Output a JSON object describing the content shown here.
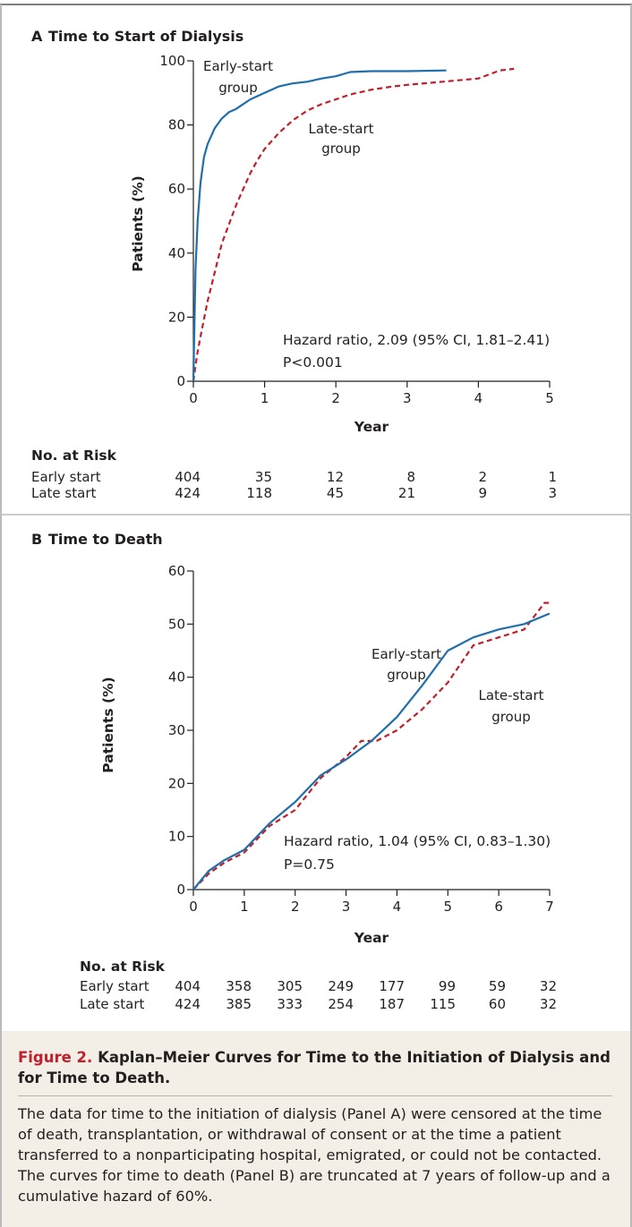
{
  "chart_data": [
    {
      "panel_letter": "A",
      "title": "Time to Start of Dialysis",
      "type": "line",
      "xlabel": "Year",
      "ylabel": "Patients (%)",
      "xlim": [
        0,
        5
      ],
      "ylim": [
        0,
        100
      ],
      "xticks": [
        0,
        1,
        2,
        3,
        4,
        5
      ],
      "yticks": [
        0,
        20,
        40,
        60,
        80,
        100
      ],
      "grid": false,
      "series": [
        {
          "name": "Early-start group",
          "color": "#1f6fad",
          "style": "solid",
          "x": [
            0,
            0.03,
            0.06,
            0.1,
            0.15,
            0.2,
            0.3,
            0.4,
            0.5,
            0.6,
            0.7,
            0.8,
            0.9,
            1.0,
            1.2,
            1.4,
            1.6,
            1.8,
            2.0,
            2.2,
            2.5,
            3.0,
            3.55
          ],
          "y": [
            0,
            35,
            50,
            62,
            70,
            74,
            79,
            82,
            84,
            85,
            86.5,
            88,
            89,
            90,
            92,
            93,
            93.5,
            94.5,
            95.2,
            96.5,
            96.8,
            96.8,
            97
          ]
        },
        {
          "name": "Late-start group",
          "color": "#c0202c",
          "style": "dashed",
          "x": [
            0,
            0.05,
            0.1,
            0.2,
            0.3,
            0.4,
            0.5,
            0.6,
            0.7,
            0.8,
            0.9,
            1.0,
            1.1,
            1.2,
            1.4,
            1.6,
            1.8,
            2.0,
            2.2,
            2.5,
            2.8,
            3.0,
            3.5,
            4.0,
            4.3,
            4.5
          ],
          "y": [
            0,
            8,
            14,
            25,
            34,
            43,
            49,
            55,
            60,
            65,
            69,
            72.5,
            75,
            77.5,
            81.5,
            84.5,
            86.5,
            88,
            89.5,
            91,
            92,
            92.5,
            93.5,
            94.5,
            97,
            97.5
          ]
        }
      ],
      "series_labels": [
        {
          "lines": [
            "Early-start",
            "group"
          ]
        },
        {
          "lines": [
            "Late-start",
            "group"
          ]
        }
      ],
      "annotation": [
        "Hazard ratio, 2.09 (95% CI, 1.81–2.41)",
        "P<0.001"
      ],
      "risk_table": {
        "header": "No. at Risk",
        "rows": [
          {
            "label": "Early start",
            "values": [
              "404",
              "35",
              "12",
              "8",
              "2",
              "1"
            ]
          },
          {
            "label": "Late start",
            "values": [
              "424",
              "118",
              "45",
              "21",
              "9",
              "3"
            ]
          }
        ]
      }
    },
    {
      "panel_letter": "B",
      "title": "Time to Death",
      "type": "line",
      "xlabel": "Year",
      "ylabel": "Patients (%)",
      "xlim": [
        0,
        7
      ],
      "ylim": [
        0,
        60
      ],
      "xticks": [
        0,
        1,
        2,
        3,
        4,
        5,
        6,
        7
      ],
      "yticks": [
        0,
        10,
        20,
        30,
        40,
        50,
        60
      ],
      "grid": false,
      "series": [
        {
          "name": "Early-start group",
          "color": "#1f6fad",
          "style": "solid",
          "x": [
            0,
            0.3,
            0.6,
            1.0,
            1.5,
            2.0,
            2.5,
            3.0,
            3.5,
            4.0,
            4.5,
            5.0,
            5.5,
            6.0,
            6.5,
            7.0
          ],
          "y": [
            0,
            3.5,
            5.5,
            7.5,
            12.5,
            16.5,
            21.5,
            24.5,
            28,
            32.5,
            38.5,
            45,
            47.5,
            49,
            50,
            52
          ]
        },
        {
          "name": "Late-start group",
          "color": "#c0202c",
          "style": "dashed",
          "x": [
            0,
            0.3,
            0.6,
            1.0,
            1.5,
            2.0,
            2.5,
            3.0,
            3.3,
            3.6,
            4.0,
            4.5,
            5.0,
            5.5,
            6.0,
            6.5,
            6.9,
            7.0
          ],
          "y": [
            0,
            3,
            5,
            7,
            12,
            15,
            21,
            25,
            28,
            28,
            30,
            34,
            39,
            46,
            47.5,
            49,
            54,
            54
          ]
        }
      ],
      "series_labels": [
        {
          "lines": [
            "Early-start",
            "group"
          ]
        },
        {
          "lines": [
            "Late-start",
            "group"
          ]
        }
      ],
      "annotation": [
        "Hazard ratio, 1.04 (95% CI, 0.83–1.30)",
        "P=0.75"
      ],
      "risk_table": {
        "header": "No. at Risk",
        "rows": [
          {
            "label": "Early start",
            "values": [
              "404",
              "358",
              "305",
              "249",
              "177",
              "99",
              "59",
              "32"
            ]
          },
          {
            "label": "Late start",
            "values": [
              "424",
              "385",
              "333",
              "254",
              "187",
              "115",
              "60",
              "32"
            ]
          }
        ]
      }
    }
  ],
  "caption": {
    "figure_label": "Figure 2.",
    "title": "Kaplan–Meier Curves for Time to the Initiation of Dialysis and for Time to Death.",
    "text": "The data for time to the initiation of dialysis (Panel A) were censored at the time of death, transplantation, or withdrawal of consent or at the time a patient transferred to a nonparticipating hospital, emigrated, or could not be contacted. The curves for time to death (Panel B) are truncated at 7 years of follow-up and a cumulative hazard of 60%."
  }
}
